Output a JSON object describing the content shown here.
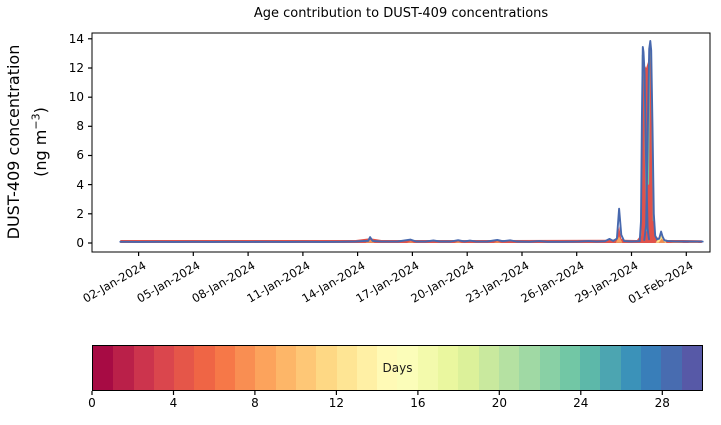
{
  "title": "Age contribution to DUST-409 concentrations",
  "ylabel": {
    "line1": "DUST-409 concentration",
    "unit_pre": "(ng m",
    "unit_exp": "−3",
    "unit_post": ")"
  },
  "axes": {
    "y_ticks": [
      0,
      2,
      4,
      6,
      8,
      10,
      12,
      14
    ],
    "x_ticks": [
      {
        "label": "02-Jan-2024",
        "day": 1
      },
      {
        "label": "05-Jan-2024",
        "day": 4
      },
      {
        "label": "08-Jan-2024",
        "day": 7
      },
      {
        "label": "11-Jan-2024",
        "day": 10
      },
      {
        "label": "14-Jan-2024",
        "day": 13
      },
      {
        "label": "17-Jan-2024",
        "day": 16
      },
      {
        "label": "20-Jan-2024",
        "day": 19
      },
      {
        "label": "23-Jan-2024",
        "day": 22
      },
      {
        "label": "26-Jan-2024",
        "day": 25
      },
      {
        "label": "29-Jan-2024",
        "day": 28
      },
      {
        "label": "01-Feb-2024",
        "day": 31
      }
    ]
  },
  "colorbar": {
    "label": "Days",
    "min": 0,
    "max": 30,
    "ticks": [
      0,
      4,
      8,
      12,
      16,
      20,
      24,
      28
    ],
    "colors": [
      "#a70b44",
      "#ba2049",
      "#cc344d",
      "#da464d",
      "#e55649",
      "#ef6545",
      "#f67848",
      "#f98e52",
      "#fca35c",
      "#fdb668",
      "#fec776",
      "#fed884",
      "#fee594",
      "#fff0a5",
      "#fffab6",
      "#fbfdb9",
      "#f3faac",
      "#eaf79f",
      "#dcf19a",
      "#c9e99e",
      "#b5e1a2",
      "#a0d9a4",
      "#89d0a5",
      "#72c7a5",
      "#5db8a9",
      "#4ca5b1",
      "#3b92b9",
      "#397eb9",
      "#486cb0",
      "#5759a7"
    ]
  },
  "chart_data": {
    "type": "area",
    "title": "Age contribution to DUST-409 concentrations",
    "xlabel": "",
    "ylabel": "DUST-409 concentration (ng m−3)",
    "x_range": [
      "01-Jan-2024",
      "02-Feb-2024"
    ],
    "ylim": [
      -0.62,
      14.4
    ],
    "x_unit": "days since 01-Jan-2024 00:00",
    "colors": {
      "total_line": "#4768ae",
      "young_age_fill": "#e0524b",
      "mid_age_edge": "#6cc4a4",
      "accent_orange": "#f29456",
      "accent_yellow": "#ffe48a"
    },
    "peaks": [
      {
        "date": "14-Jan-2024",
        "value": 0.4
      },
      {
        "date": "28-Jan-2024",
        "value": 2.35
      },
      {
        "date": "29-Jan-2024",
        "value": 13.45
      },
      {
        "date": "30-Jan-2024",
        "value": 13.85
      }
    ],
    "total_line_segments": [
      {
        "name": "baseline",
        "points": [
          [
            0,
            0.08
          ],
          [
            1,
            0.07
          ],
          [
            2,
            0.08
          ],
          [
            3,
            0.07
          ],
          [
            4,
            0.08
          ],
          [
            5,
            0.07
          ],
          [
            6,
            0.08
          ],
          [
            7,
            0.07
          ],
          [
            8,
            0.08
          ],
          [
            9,
            0.07
          ],
          [
            10,
            0.08
          ],
          [
            11,
            0.07
          ],
          [
            12,
            0.08
          ],
          [
            12.9,
            0.1
          ],
          [
            13.4,
            0.14
          ],
          [
            13.58,
            0.14
          ],
          [
            13.68,
            0.4
          ],
          [
            13.82,
            0.14
          ],
          [
            14.3,
            0.09
          ],
          [
            15.2,
            0.1
          ],
          [
            15.9,
            0.23
          ],
          [
            16.2,
            0.1
          ],
          [
            16.7,
            0.09
          ],
          [
            17.15,
            0.17
          ],
          [
            17.5,
            0.1
          ],
          [
            18.1,
            0.1
          ],
          [
            18.5,
            0.19
          ],
          [
            18.85,
            0.11
          ],
          [
            19.15,
            0.16
          ],
          [
            19.5,
            0.09
          ],
          [
            20.1,
            0.1
          ],
          [
            20.65,
            0.21
          ],
          [
            20.95,
            0.12
          ],
          [
            21.35,
            0.18
          ],
          [
            21.7,
            0.1
          ],
          [
            22.4,
            0.08
          ],
          [
            22.95,
            0.13
          ],
          [
            23.4,
            0.08
          ],
          [
            24.2,
            0.08
          ],
          [
            25.1,
            0.09
          ],
          [
            25.65,
            0.13
          ],
          [
            26.1,
            0.09
          ],
          [
            26.55,
            0.12
          ],
          [
            26.8,
            0.28
          ],
          [
            27.0,
            0.14
          ],
          [
            27.2,
            0.3
          ],
          [
            27.32,
            2.35
          ],
          [
            27.44,
            0.55
          ],
          [
            27.6,
            0.13
          ],
          [
            28.0,
            0.1
          ],
          [
            28.45,
            0.12
          ]
        ]
      },
      {
        "name": "spike1",
        "points": [
          [
            28.45,
            0.12
          ],
          [
            28.52,
            1.5
          ],
          [
            28.57,
            8.5
          ],
          [
            28.62,
            13.45
          ],
          [
            28.66,
            13.1
          ],
          [
            28.72,
            11.6
          ],
          [
            28.8,
            5.5
          ],
          [
            28.88,
            1.0
          ],
          [
            28.96,
            0.25
          ]
        ]
      },
      {
        "name": "spike2",
        "points": [
          [
            28.7,
            0.2
          ],
          [
            28.8,
            1.2
          ],
          [
            28.88,
            7.0
          ],
          [
            28.97,
            13.3
          ],
          [
            29.03,
            13.85
          ],
          [
            29.08,
            13.2
          ],
          [
            29.15,
            8.0
          ],
          [
            29.22,
            2.0
          ],
          [
            29.3,
            0.5
          ],
          [
            29.4,
            0.25
          ]
        ]
      },
      {
        "name": "tail",
        "points": [
          [
            29.4,
            0.25
          ],
          [
            29.52,
            0.3
          ],
          [
            29.62,
            0.78
          ],
          [
            29.7,
            0.45
          ],
          [
            29.8,
            0.18
          ],
          [
            30.0,
            0.13
          ],
          [
            30.4,
            0.11
          ],
          [
            31.0,
            0.1
          ],
          [
            31.9,
            0.09
          ]
        ]
      }
    ],
    "young_age_area": [
      [
        0,
        0.2
      ],
      [
        12.9,
        0.2
      ],
      [
        13.68,
        0.32
      ],
      [
        14.3,
        0.2
      ],
      [
        20,
        0.2
      ],
      [
        26.8,
        0.22
      ],
      [
        27.2,
        0.25
      ],
      [
        27.32,
        1.15
      ],
      [
        27.44,
        0.3
      ],
      [
        27.6,
        0.22
      ],
      [
        28.3,
        0.2
      ],
      [
        28.48,
        0.5
      ],
      [
        28.54,
        3.0
      ],
      [
        28.6,
        12.9
      ],
      [
        28.65,
        13.0
      ],
      [
        28.72,
        12.2
      ],
      [
        28.8,
        12.0
      ],
      [
        28.9,
        12.4
      ],
      [
        28.98,
        13.1
      ],
      [
        29.03,
        13.4
      ],
      [
        29.09,
        12.5
      ],
      [
        29.16,
        6.5
      ],
      [
        29.24,
        1.2
      ],
      [
        29.35,
        0.4
      ],
      [
        29.5,
        0.35
      ],
      [
        29.62,
        0.6
      ],
      [
        29.72,
        0.3
      ],
      [
        29.95,
        0.2
      ],
      [
        30.8,
        0.2
      ],
      [
        31.85,
        0.18
      ]
    ],
    "mid_age_edges": [
      [
        [
          28.5,
          0.5
        ],
        [
          28.56,
          5.0
        ],
        [
          28.6,
          12.9
        ]
      ],
      [
        [
          28.64,
          12.9
        ],
        [
          28.7,
          11.8
        ],
        [
          28.76,
          6.0
        ],
        [
          28.84,
          0.8
        ]
      ],
      [
        [
          28.93,
          4.0
        ],
        [
          28.99,
          13.0
        ]
      ],
      [
        [
          29.06,
          13.2
        ],
        [
          29.12,
          9.0
        ],
        [
          29.2,
          1.5
        ]
      ]
    ],
    "accents": [
      {
        "day": 13.68,
        "w": 0.25,
        "h": 0.22,
        "color": "#f29456"
      },
      {
        "day": 15.9,
        "w": 0.2,
        "h": 0.12,
        "color": "#f29456"
      },
      {
        "day": 18.5,
        "w": 0.2,
        "h": 0.1,
        "color": "#f6a35c"
      },
      {
        "day": 20.65,
        "w": 0.2,
        "h": 0.12,
        "color": "#f29456"
      },
      {
        "day": 27.32,
        "w": 0.18,
        "h": 0.45,
        "color": "#f6a35c"
      },
      {
        "day": 29.62,
        "w": 0.3,
        "h": 0.55,
        "color": "#ffe48a"
      },
      {
        "day": 29.66,
        "w": 0.18,
        "h": 0.3,
        "color": "#f08a4e"
      },
      {
        "day": 30.5,
        "w": 0.35,
        "h": 0.08,
        "color": "#f29456"
      },
      {
        "day": 31.4,
        "w": 0.3,
        "h": 0.08,
        "color": "#f29456"
      }
    ]
  }
}
